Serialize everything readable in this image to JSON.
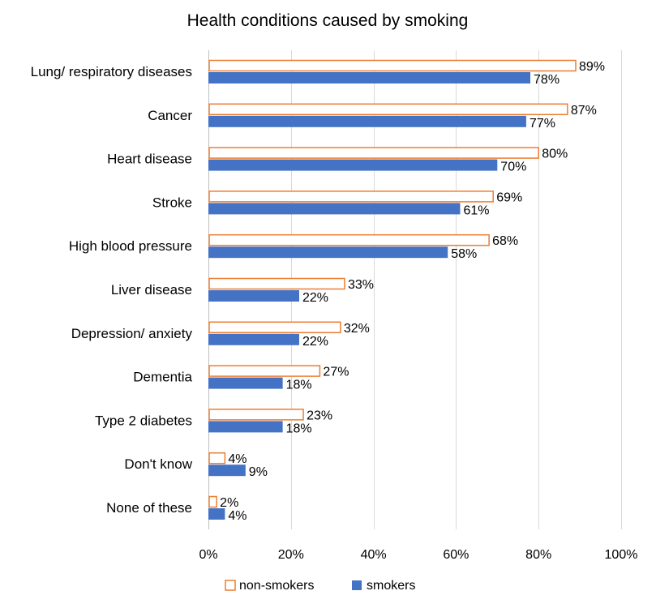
{
  "chart_data": {
    "type": "bar",
    "orientation": "horizontal",
    "title": "Health conditions caused by smoking",
    "categories": [
      "Lung/ respiratory diseases",
      "Cancer",
      "Heart disease",
      "Stroke",
      "High blood pressure",
      "Liver disease",
      "Depression/ anxiety",
      "Dementia",
      "Type 2 diabetes",
      "Don't know",
      "None of these"
    ],
    "series": [
      {
        "name": "non-smokers",
        "values": [
          89,
          87,
          80,
          69,
          68,
          33,
          32,
          27,
          23,
          4,
          2
        ],
        "labels": [
          "89%",
          "87%",
          "80%",
          "69%",
          "68%",
          "33%",
          "32%",
          "27%",
          "23%",
          "4%",
          "2%"
        ],
        "fill": "#ffffff",
        "stroke": "#ed7d31"
      },
      {
        "name": "smokers",
        "values": [
          78,
          77,
          70,
          61,
          58,
          22,
          22,
          18,
          18,
          9,
          4
        ],
        "labels": [
          "78%",
          "77%",
          "70%",
          "61%",
          "58%",
          "22%",
          "22%",
          "18%",
          "18%",
          "9%",
          "4%"
        ],
        "fill": "#4472c4",
        "stroke": "#4472c4"
      }
    ],
    "xlim": [
      0,
      100
    ],
    "xticks": [
      "0%",
      "20%",
      "40%",
      "60%",
      "80%",
      "100%"
    ],
    "xtick_values": [
      0,
      20,
      40,
      60,
      80,
      100
    ],
    "grid": true,
    "legend_position": "bottom"
  }
}
